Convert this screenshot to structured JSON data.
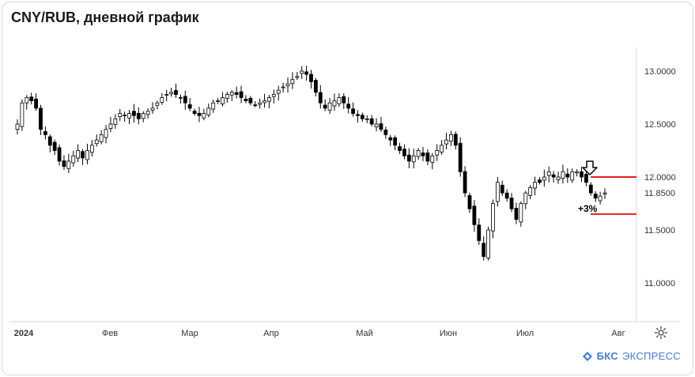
{
  "header": {
    "title": "CNY/RUB, дневной график"
  },
  "brand": {
    "name_bold": "БКС",
    "name_rest": "ЭКСПРЕСС"
  },
  "settings": {
    "icon": "gear-icon"
  },
  "colors": {
    "candle": "#000000",
    "level_line": "#e02020",
    "axis_text": "#333333",
    "brand": "#3d7fd9"
  },
  "chart_data": {
    "type": "candlestick",
    "title": "CNY/RUB, дневной график",
    "x_labels": [
      "2024",
      "Фев",
      "Мар",
      "Апр",
      "Май",
      "Июн",
      "Июл",
      "Авг"
    ],
    "y_ticks": [
      "13.0000",
      "12.5000",
      "12.0000",
      "11.8500",
      "11.5000",
      "11.0000"
    ],
    "ylim": [
      10.75,
      13.25
    ],
    "grid": false,
    "levels": [
      12.0,
      11.65
    ],
    "annotations": [
      {
        "text": "+3%"
      },
      {
        "text": "arrow-down-icon"
      }
    ],
    "close": [
      12.5,
      12.7,
      12.75,
      12.72,
      12.65,
      12.45,
      12.4,
      12.3,
      12.25,
      12.15,
      12.1,
      12.15,
      12.2,
      12.25,
      12.18,
      12.25,
      12.3,
      12.35,
      12.4,
      12.45,
      12.5,
      12.55,
      12.6,
      12.58,
      12.6,
      12.58,
      12.55,
      12.6,
      12.62,
      12.65,
      12.7,
      12.75,
      12.78,
      12.8,
      12.78,
      12.75,
      12.7,
      12.65,
      12.6,
      12.58,
      12.6,
      12.65,
      12.7,
      12.72,
      12.75,
      12.78,
      12.8,
      12.78,
      12.75,
      12.72,
      12.7,
      12.68,
      12.7,
      12.72,
      12.75,
      12.78,
      12.82,
      12.85,
      12.88,
      12.92,
      12.95,
      13.0,
      12.97,
      12.9,
      12.8,
      12.7,
      12.65,
      12.7,
      12.72,
      12.75,
      12.7,
      12.65,
      12.6,
      12.58,
      12.55,
      12.55,
      12.5,
      12.5,
      12.45,
      12.4,
      12.35,
      12.3,
      12.25,
      12.2,
      12.15,
      12.2,
      12.25,
      12.2,
      12.15,
      12.2,
      12.25,
      12.3,
      12.35,
      12.4,
      12.3,
      12.05,
      11.85,
      11.7,
      11.55,
      11.4,
      11.25,
      11.5,
      11.75,
      11.95,
      11.85,
      11.8,
      11.7,
      11.6,
      11.75,
      11.85,
      11.9,
      11.95,
      11.95,
      12.0,
      12.05,
      12.0,
      12.0,
      12.05,
      12.0,
      12.05,
      12.05,
      12.0,
      11.95,
      11.85,
      11.8,
      11.82,
      11.85
    ]
  }
}
